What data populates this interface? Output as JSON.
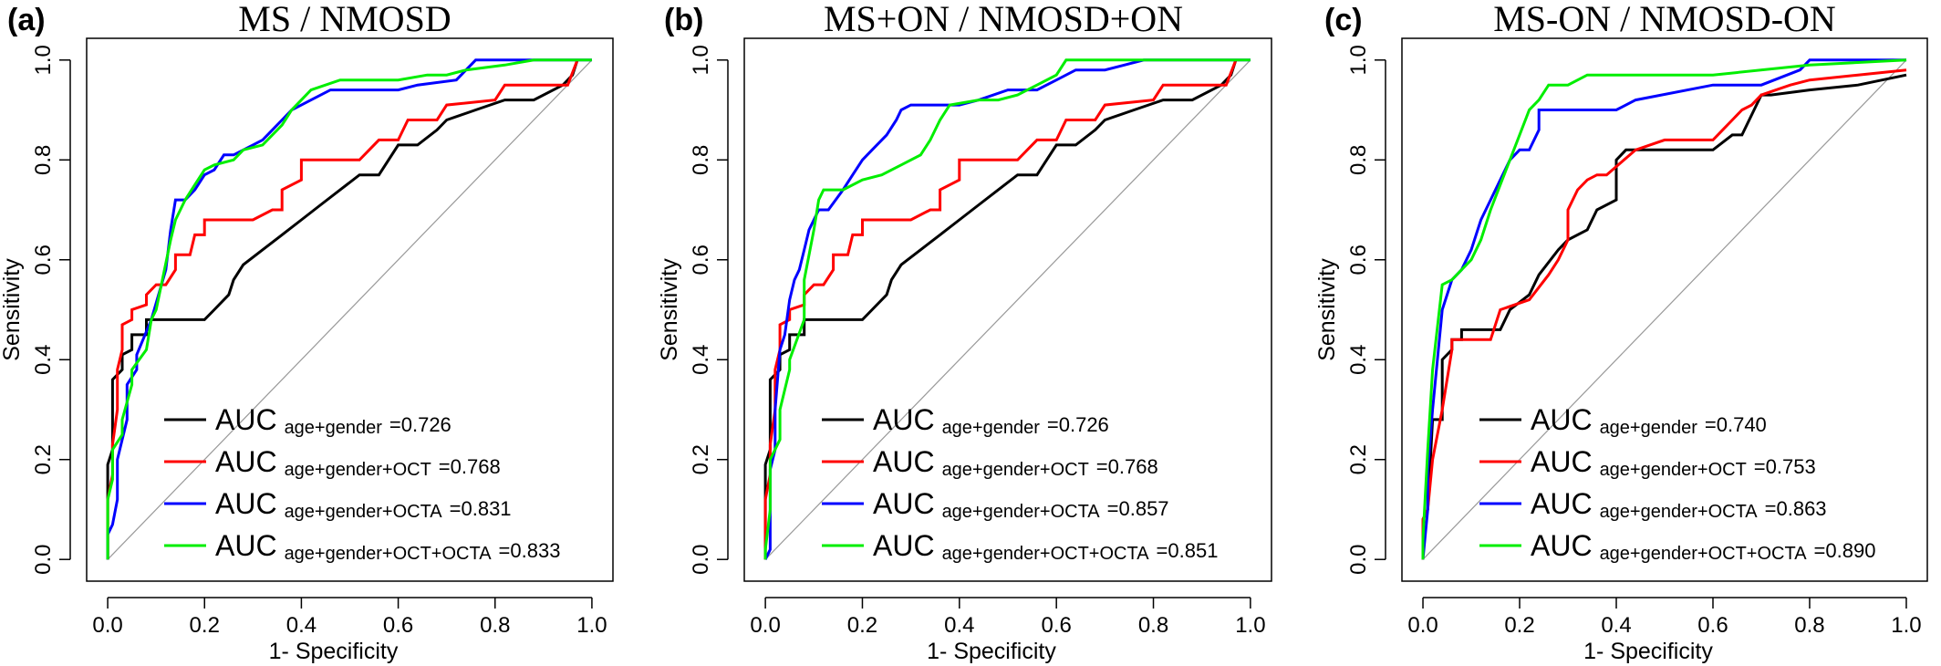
{
  "chart_data": [
    {
      "type": "line",
      "panel_label": "(a)",
      "title": "MS / NMOSD",
      "xlabel": "1- Specificity",
      "ylabel": "Sensitivity",
      "xlim": [
        0,
        1
      ],
      "ylim": [
        0,
        1
      ],
      "xticks": [
        "0.0",
        "0.2",
        "0.4",
        "0.6",
        "0.8",
        "1.0"
      ],
      "yticks": [
        "0.0",
        "0.2",
        "0.4",
        "0.6",
        "0.8",
        "1.0"
      ],
      "legend_position": "bottom-right",
      "series": [
        {
          "name": "AUC",
          "subscript": "age+gender",
          "value_text": "=0.726",
          "color": "#000000",
          "x": [
            0,
            0,
            0.01,
            0.01,
            0.03,
            0.03,
            0.05,
            0.05,
            0.08,
            0.08,
            0.2,
            0.22,
            0.25,
            0.26,
            0.28,
            0.32,
            0.36,
            0.4,
            0.44,
            0.48,
            0.52,
            0.56,
            0.6,
            0.64,
            0.68,
            0.7,
            0.76,
            0.82,
            0.88,
            0.94,
            0.96,
            0.97
          ],
          "y": [
            0,
            0.19,
            0.22,
            0.36,
            0.38,
            0.41,
            0.42,
            0.45,
            0.45,
            0.48,
            0.48,
            0.5,
            0.53,
            0.56,
            0.59,
            0.62,
            0.65,
            0.68,
            0.71,
            0.74,
            0.77,
            0.77,
            0.83,
            0.83,
            0.86,
            0.88,
            0.9,
            0.92,
            0.92,
            0.95,
            0.97,
            1.0
          ]
        },
        {
          "name": "AUC",
          "subscript": "age+gender+OCT",
          "value_text": "=0.768",
          "color": "#ff0000",
          "x": [
            0,
            0,
            0.01,
            0.01,
            0.02,
            0.02,
            0.03,
            0.03,
            0.05,
            0.05,
            0.08,
            0.08,
            0.1,
            0.12,
            0.14,
            0.14,
            0.17,
            0.18,
            0.2,
            0.2,
            0.3,
            0.34,
            0.36,
            0.36,
            0.4,
            0.4,
            0.52,
            0.56,
            0.6,
            0.62,
            0.68,
            0.7,
            0.8,
            0.82,
            0.95,
            0.97
          ],
          "y": [
            0,
            0.12,
            0.17,
            0.23,
            0.3,
            0.38,
            0.42,
            0.47,
            0.48,
            0.5,
            0.51,
            0.53,
            0.55,
            0.55,
            0.58,
            0.61,
            0.61,
            0.65,
            0.65,
            0.68,
            0.68,
            0.7,
            0.7,
            0.74,
            0.76,
            0.8,
            0.8,
            0.84,
            0.84,
            0.88,
            0.88,
            0.91,
            0.92,
            0.95,
            0.95,
            1.0
          ]
        },
        {
          "name": "AUC",
          "subscript": "age+gender+OCTA",
          "value_text": "=0.831",
          "color": "#0000ff",
          "x": [
            0,
            0,
            0.01,
            0.02,
            0.02,
            0.04,
            0.04,
            0.06,
            0.06,
            0.09,
            0.12,
            0.13,
            0.14,
            0.16,
            0.18,
            0.2,
            0.22,
            0.24,
            0.26,
            0.3,
            0.32,
            0.34,
            0.36,
            0.38,
            0.4,
            0.42,
            0.46,
            0.5,
            0.6,
            0.64,
            0.72,
            0.74,
            0.76,
            0.78,
            1.0
          ],
          "y": [
            0,
            0.05,
            0.07,
            0.12,
            0.2,
            0.28,
            0.35,
            0.38,
            0.41,
            0.48,
            0.58,
            0.66,
            0.72,
            0.72,
            0.74,
            0.77,
            0.78,
            0.81,
            0.81,
            0.83,
            0.84,
            0.86,
            0.88,
            0.9,
            0.91,
            0.92,
            0.94,
            0.94,
            0.94,
            0.95,
            0.96,
            0.98,
            1.0,
            1.0,
            1.0
          ]
        },
        {
          "name": "AUC",
          "subscript": "age+gender+OCT+OCTA",
          "value_text": "=0.833",
          "color": "#00ee00",
          "x": [
            0,
            0,
            0.01,
            0.01,
            0.03,
            0.03,
            0.05,
            0.05,
            0.08,
            0.09,
            0.1,
            0.13,
            0.14,
            0.16,
            0.18,
            0.2,
            0.22,
            0.26,
            0.28,
            0.32,
            0.34,
            0.36,
            0.38,
            0.4,
            0.42,
            0.48,
            0.6,
            0.66,
            0.7,
            0.74,
            0.82,
            0.88,
            0.92,
            1.0
          ],
          "y": [
            0,
            0.12,
            0.16,
            0.22,
            0.25,
            0.28,
            0.35,
            0.38,
            0.42,
            0.48,
            0.5,
            0.64,
            0.68,
            0.72,
            0.75,
            0.78,
            0.79,
            0.8,
            0.82,
            0.83,
            0.85,
            0.87,
            0.9,
            0.92,
            0.94,
            0.96,
            0.96,
            0.97,
            0.97,
            0.98,
            0.99,
            1.0,
            1.0,
            1.0
          ]
        }
      ]
    },
    {
      "type": "line",
      "panel_label": "(b)",
      "title": "MS+ON / NMOSD+ON",
      "xlabel": "1- Specificity",
      "ylabel": "Sensitivity",
      "xlim": [
        0,
        1
      ],
      "ylim": [
        0,
        1
      ],
      "xticks": [
        "0.0",
        "0.2",
        "0.4",
        "0.6",
        "0.8",
        "1.0"
      ],
      "yticks": [
        "0.0",
        "0.2",
        "0.4",
        "0.6",
        "0.8",
        "1.0"
      ],
      "legend_position": "bottom-right",
      "series": [
        {
          "name": "AUC",
          "subscript": "age+gender",
          "value_text": "=0.726",
          "color": "#000000",
          "x": [
            0,
            0,
            0.01,
            0.01,
            0.03,
            0.03,
            0.05,
            0.05,
            0.08,
            0.08,
            0.2,
            0.22,
            0.25,
            0.26,
            0.28,
            0.32,
            0.36,
            0.4,
            0.44,
            0.48,
            0.52,
            0.56,
            0.6,
            0.64,
            0.68,
            0.7,
            0.76,
            0.82,
            0.88,
            0.94,
            0.96,
            0.97
          ],
          "y": [
            0,
            0.19,
            0.22,
            0.36,
            0.38,
            0.41,
            0.42,
            0.45,
            0.45,
            0.48,
            0.48,
            0.5,
            0.53,
            0.56,
            0.59,
            0.62,
            0.65,
            0.68,
            0.71,
            0.74,
            0.77,
            0.77,
            0.83,
            0.83,
            0.86,
            0.88,
            0.9,
            0.92,
            0.92,
            0.95,
            0.97,
            1.0
          ]
        },
        {
          "name": "AUC",
          "subscript": "age+gender+OCT",
          "value_text": "=0.768",
          "color": "#ff0000",
          "x": [
            0,
            0,
            0.01,
            0.01,
            0.02,
            0.02,
            0.03,
            0.03,
            0.05,
            0.05,
            0.08,
            0.08,
            0.1,
            0.12,
            0.14,
            0.14,
            0.17,
            0.18,
            0.2,
            0.2,
            0.3,
            0.34,
            0.36,
            0.36,
            0.4,
            0.4,
            0.52,
            0.56,
            0.6,
            0.62,
            0.68,
            0.7,
            0.8,
            0.82,
            0.95,
            0.97
          ],
          "y": [
            0,
            0.12,
            0.17,
            0.23,
            0.3,
            0.38,
            0.42,
            0.47,
            0.48,
            0.5,
            0.51,
            0.53,
            0.55,
            0.55,
            0.58,
            0.61,
            0.61,
            0.65,
            0.65,
            0.68,
            0.68,
            0.7,
            0.7,
            0.74,
            0.76,
            0.8,
            0.8,
            0.84,
            0.84,
            0.88,
            0.88,
            0.91,
            0.92,
            0.95,
            0.95,
            1.0
          ]
        },
        {
          "name": "AUC",
          "subscript": "age+gender+OCTA",
          "value_text": "=0.857",
          "color": "#0000ff",
          "x": [
            0,
            0.01,
            0.01,
            0.02,
            0.02,
            0.03,
            0.04,
            0.05,
            0.06,
            0.07,
            0.08,
            0.09,
            0.11,
            0.13,
            0.16,
            0.18,
            0.2,
            0.22,
            0.25,
            0.27,
            0.28,
            0.3,
            0.4,
            0.44,
            0.5,
            0.56,
            0.6,
            0.64,
            0.7,
            0.74,
            0.78,
            1.0
          ],
          "y": [
            0,
            0.02,
            0.18,
            0.22,
            0.3,
            0.42,
            0.45,
            0.52,
            0.56,
            0.58,
            0.62,
            0.66,
            0.7,
            0.7,
            0.74,
            0.77,
            0.8,
            0.82,
            0.85,
            0.88,
            0.9,
            0.91,
            0.91,
            0.92,
            0.94,
            0.94,
            0.96,
            0.98,
            0.98,
            0.99,
            1.0,
            1.0
          ]
        },
        {
          "name": "AUC",
          "subscript": "age+gender+OCT+OCTA",
          "value_text": "=0.851",
          "color": "#00ee00",
          "x": [
            0,
            0,
            0.01,
            0.01,
            0.03,
            0.03,
            0.05,
            0.05,
            0.08,
            0.08,
            0.1,
            0.11,
            0.12,
            0.16,
            0.2,
            0.24,
            0.28,
            0.32,
            0.34,
            0.36,
            0.38,
            0.44,
            0.48,
            0.52,
            0.56,
            0.6,
            0.62,
            0.7,
            0.8,
            1.0
          ],
          "y": [
            0,
            0.02,
            0.1,
            0.2,
            0.24,
            0.3,
            0.38,
            0.4,
            0.48,
            0.56,
            0.66,
            0.72,
            0.74,
            0.74,
            0.76,
            0.77,
            0.79,
            0.81,
            0.84,
            0.88,
            0.91,
            0.92,
            0.92,
            0.93,
            0.95,
            0.97,
            1.0,
            1.0,
            1.0,
            1.0
          ]
        }
      ]
    },
    {
      "type": "line",
      "panel_label": "(c)",
      "title": "MS-ON / NMOSD-ON",
      "xlabel": "1- Specificity",
      "ylabel": "Sensitivity",
      "xlim": [
        0,
        1
      ],
      "ylim": [
        0,
        1
      ],
      "xticks": [
        "0.0",
        "0.2",
        "0.4",
        "0.6",
        "0.8",
        "1.0"
      ],
      "yticks": [
        "0.0",
        "0.2",
        "0.4",
        "0.6",
        "0.8",
        "1.0"
      ],
      "legend_position": "bottom-right",
      "series": [
        {
          "name": "AUC",
          "subscript": "age+gender",
          "value_text": "=0.740",
          "color": "#000000",
          "x": [
            0,
            0,
            0.01,
            0.02,
            0.04,
            0.04,
            0.06,
            0.06,
            0.08,
            0.08,
            0.16,
            0.18,
            0.22,
            0.24,
            0.28,
            0.3,
            0.34,
            0.36,
            0.4,
            0.4,
            0.42,
            0.46,
            0.5,
            0.56,
            0.6,
            0.64,
            0.66,
            0.7,
            0.72,
            0.8,
            0.9,
            1.0
          ],
          "y": [
            0,
            0.08,
            0.1,
            0.28,
            0.28,
            0.4,
            0.42,
            0.44,
            0.44,
            0.46,
            0.46,
            0.5,
            0.53,
            0.57,
            0.62,
            0.64,
            0.66,
            0.7,
            0.72,
            0.8,
            0.82,
            0.82,
            0.82,
            0.82,
            0.82,
            0.85,
            0.85,
            0.93,
            0.93,
            0.94,
            0.95,
            0.97
          ]
        },
        {
          "name": "AUC",
          "subscript": "age+gender+OCT",
          "value_text": "=0.753",
          "color": "#ff0000",
          "x": [
            0,
            0,
            0.01,
            0.02,
            0.04,
            0.06,
            0.06,
            0.1,
            0.14,
            0.16,
            0.22,
            0.26,
            0.28,
            0.3,
            0.3,
            0.32,
            0.34,
            0.36,
            0.38,
            0.44,
            0.5,
            0.6,
            0.62,
            0.64,
            0.66,
            0.68,
            0.7,
            0.76,
            0.8,
            0.9,
            1.0
          ],
          "y": [
            0,
            0.08,
            0.1,
            0.2,
            0.3,
            0.42,
            0.44,
            0.44,
            0.44,
            0.5,
            0.52,
            0.57,
            0.6,
            0.64,
            0.7,
            0.74,
            0.76,
            0.77,
            0.77,
            0.82,
            0.84,
            0.84,
            0.86,
            0.88,
            0.9,
            0.91,
            0.93,
            0.95,
            0.96,
            0.97,
            0.98
          ]
        },
        {
          "name": "AUC",
          "subscript": "age+gender+OCTA",
          "value_text": "=0.863",
          "color": "#0000ff",
          "x": [
            0,
            0.01,
            0.01,
            0.02,
            0.04,
            0.06,
            0.08,
            0.1,
            0.12,
            0.14,
            0.16,
            0.18,
            0.2,
            0.22,
            0.24,
            0.24,
            0.26,
            0.3,
            0.4,
            0.44,
            0.6,
            0.7,
            0.78,
            0.8,
            1.0
          ],
          "y": [
            0,
            0.1,
            0.18,
            0.3,
            0.5,
            0.56,
            0.58,
            0.62,
            0.68,
            0.72,
            0.76,
            0.8,
            0.82,
            0.82,
            0.86,
            0.9,
            0.9,
            0.9,
            0.9,
            0.92,
            0.95,
            0.95,
            0.98,
            1.0,
            1.0
          ]
        },
        {
          "name": "AUC",
          "subscript": "age+gender+OCT+OCTA",
          "value_text": "=0.890",
          "color": "#00ee00",
          "x": [
            0,
            0,
            0.01,
            0.02,
            0.04,
            0.06,
            0.1,
            0.12,
            0.14,
            0.16,
            0.18,
            0.2,
            0.22,
            0.24,
            0.26,
            0.3,
            0.34,
            0.4,
            0.6,
            0.8,
            1.0
          ],
          "y": [
            0,
            0.04,
            0.22,
            0.38,
            0.55,
            0.56,
            0.6,
            0.64,
            0.7,
            0.75,
            0.8,
            0.85,
            0.9,
            0.92,
            0.95,
            0.95,
            0.97,
            0.97,
            0.97,
            0.99,
            1.0
          ]
        }
      ]
    }
  ]
}
